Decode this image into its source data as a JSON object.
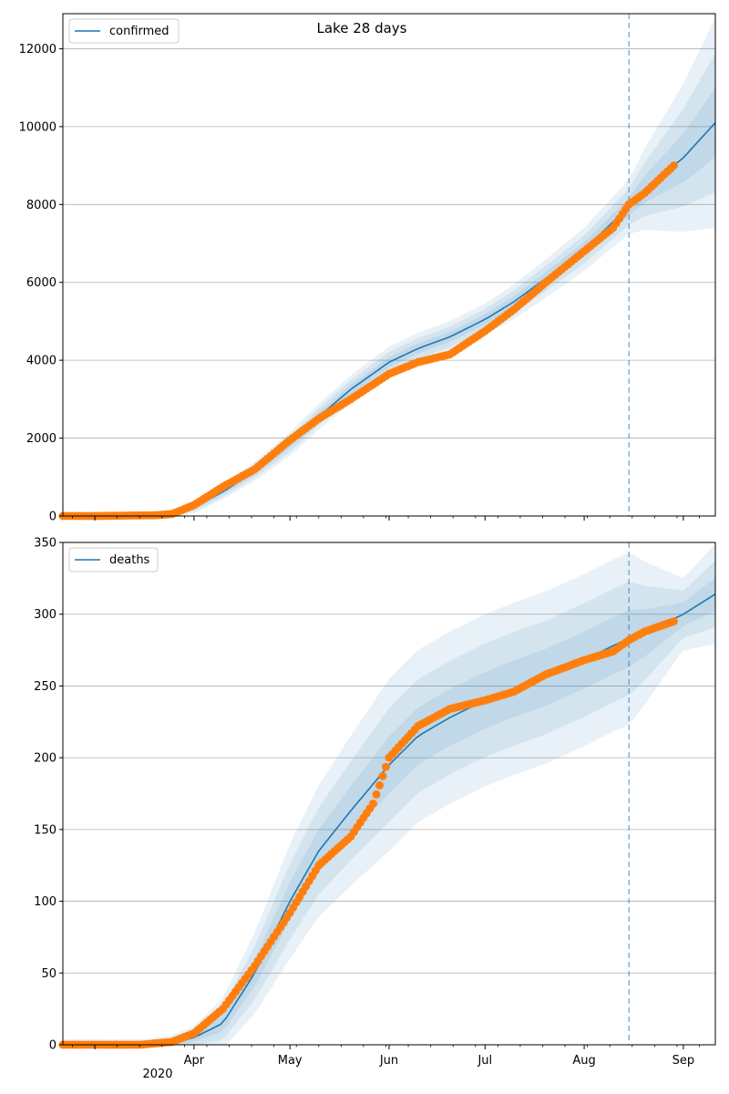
{
  "chart_data": [
    {
      "type": "line",
      "title": "Lake 28 days",
      "series": [
        {
          "name": "confirmed",
          "kind": "model",
          "color": "#1f77b4",
          "x": [
            "2020-02-20",
            "2020-03-01",
            "2020-03-10",
            "2020-03-20",
            "2020-03-25",
            "2020-04-01",
            "2020-04-10",
            "2020-04-20",
            "2020-05-01",
            "2020-05-10",
            "2020-05-20",
            "2020-06-01",
            "2020-06-10",
            "2020-06-20",
            "2020-07-01",
            "2020-07-10",
            "2020-07-20",
            "2020-08-01",
            "2020-08-10",
            "2020-08-15",
            "2020-08-20",
            "2020-09-01",
            "2020-09-11"
          ],
          "y": [
            0,
            0,
            5,
            20,
            60,
            220,
            620,
            1150,
            1850,
            2550,
            3250,
            3950,
            4300,
            4600,
            5050,
            5500,
            6100,
            6850,
            7550,
            7950,
            8400,
            9200,
            10100
          ]
        },
        {
          "name": "",
          "kind": "observed",
          "color": "#ff7f0e",
          "x": [
            "2020-02-20",
            "2020-03-01",
            "2020-03-10",
            "2020-03-20",
            "2020-03-25",
            "2020-04-01",
            "2020-04-10",
            "2020-04-20",
            "2020-05-01",
            "2020-05-10",
            "2020-05-20",
            "2020-06-01",
            "2020-06-10",
            "2020-06-20",
            "2020-07-01",
            "2020-07-10",
            "2020-07-20",
            "2020-08-01",
            "2020-08-10",
            "2020-08-15",
            "2020-08-20",
            "2020-08-29"
          ],
          "y": [
            0,
            0,
            10,
            20,
            50,
            280,
            750,
            1200,
            1950,
            2500,
            3000,
            3650,
            3950,
            4150,
            4750,
            5300,
            6000,
            6800,
            7400,
            8000,
            8300,
            9000
          ]
        }
      ],
      "bands": {
        "x": [
          "2020-02-20",
          "2020-03-20",
          "2020-04-01",
          "2020-05-01",
          "2020-06-01",
          "2020-07-01",
          "2020-08-01",
          "2020-08-15",
          "2020-09-01",
          "2020-09-11"
        ],
        "half_width": [
          0,
          20,
          150,
          300,
          400,
          400,
          550,
          700,
          1900,
          2700
        ]
      },
      "vline": "2020-08-15",
      "ylim": [
        0,
        12900
      ],
      "yticks": [
        "0",
        "2000",
        "4000",
        "6000",
        "8000",
        "10000",
        "12000"
      ],
      "legend": "top-left"
    },
    {
      "type": "line",
      "series": [
        {
          "name": "deaths",
          "kind": "model",
          "color": "#1f77b4",
          "x": [
            "2020-02-20",
            "2020-03-15",
            "2020-03-25",
            "2020-04-01",
            "2020-04-10",
            "2020-04-20",
            "2020-05-01",
            "2020-05-10",
            "2020-05-20",
            "2020-06-01",
            "2020-06-10",
            "2020-06-20",
            "2020-07-01",
            "2020-07-10",
            "2020-07-20",
            "2020-08-01",
            "2020-08-10",
            "2020-08-15",
            "2020-08-20",
            "2020-09-01",
            "2020-09-11"
          ],
          "y": [
            0,
            0,
            1,
            5,
            15,
            50,
            100,
            135,
            163,
            195,
            215,
            228,
            240,
            248,
            256,
            268,
            278,
            283,
            287,
            300,
            314
          ]
        },
        {
          "name": "",
          "kind": "observed",
          "color": "#ff7f0e",
          "x": [
            "2020-02-20",
            "2020-03-15",
            "2020-03-25",
            "2020-04-01",
            "2020-04-10",
            "2020-04-20",
            "2020-05-01",
            "2020-05-10",
            "2020-05-20",
            "2020-05-27",
            "2020-06-01",
            "2020-06-10",
            "2020-06-20",
            "2020-07-01",
            "2020-07-10",
            "2020-07-20",
            "2020-08-01",
            "2020-08-10",
            "2020-08-15",
            "2020-08-20",
            "2020-08-29"
          ],
          "y": [
            0,
            0,
            2,
            8,
            25,
            55,
            92,
            125,
            145,
            168,
            200,
            222,
            234,
            240,
            246,
            258,
            268,
            274,
            282,
            288,
            295
          ]
        }
      ],
      "bands": {
        "x": [
          "2020-02-20",
          "2020-03-20",
          "2020-04-01",
          "2020-05-01",
          "2020-06-01",
          "2020-07-01",
          "2020-08-01",
          "2020-08-15",
          "2020-09-01",
          "2020-09-11"
        ],
        "half_width": [
          4,
          4,
          8,
          40,
          60,
          60,
          60,
          60,
          25,
          35
        ]
      },
      "vline": "2020-08-15",
      "ylim": [
        0,
        350
      ],
      "yticks": [
        "0",
        "50",
        "100",
        "150",
        "200",
        "250",
        "300",
        "350"
      ],
      "xticks": [
        "Apr",
        "May",
        "Jun",
        "Jul",
        "Aug",
        "Sep"
      ],
      "xsublabel": "2020",
      "legend": "top-left"
    }
  ]
}
